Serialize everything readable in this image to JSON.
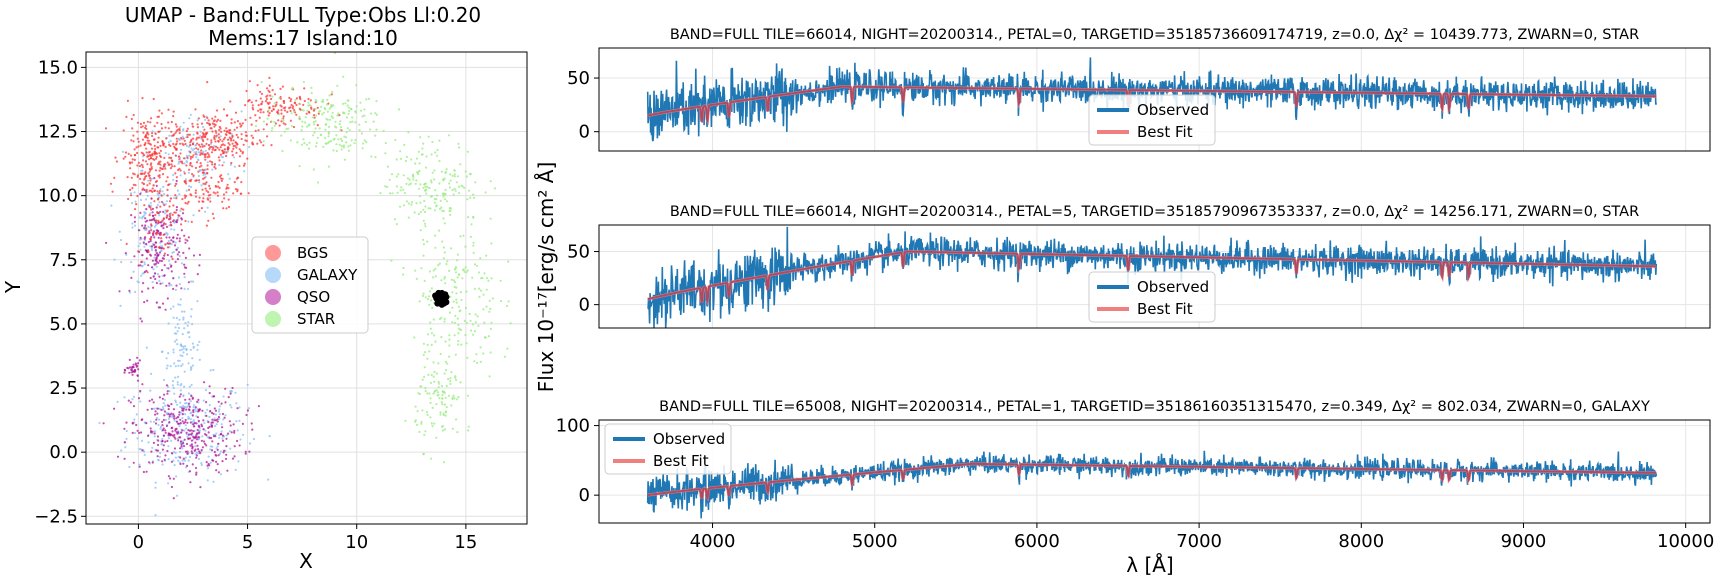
{
  "chart_data": [
    {
      "type": "scatter",
      "title": "UMAP  -  Band:FULL Type:Obs Ll:0.20",
      "subtitle": "Mems:17 Island:10",
      "xlabel": "X",
      "ylabel": "Y",
      "xlim": [
        -2.4,
        17.8
      ],
      "ylim": [
        -2.8,
        15.6
      ],
      "xticks": [
        0,
        5,
        10,
        15
      ],
      "xtick_labels": [
        "0",
        "5",
        "10",
        "15"
      ],
      "yticks": [
        -2.5,
        0.0,
        2.5,
        5.0,
        7.5,
        10.0,
        12.5,
        15.0
      ],
      "ytick_labels": [
        "−2.5",
        "0.0",
        "2.5",
        "5.0",
        "7.5",
        "10.0",
        "12.5",
        "15.0"
      ],
      "grid": true,
      "legend_position": "center",
      "series": [
        {
          "name": "BGS",
          "color": "#ff3333",
          "regions": [
            [
              0.5,
              11.5,
              1.2,
              1.6,
              0.35
            ],
            [
              3.5,
              12.2,
              1.8,
              1.0,
              0.35
            ],
            [
              6.5,
              13.5,
              1.8,
              0.8,
              0.2
            ],
            [
              1.0,
              9.0,
              1.0,
              1.2,
              0.1
            ],
            [
              3.0,
              10.5,
              1.5,
              1.2,
              0.2
            ]
          ]
        },
        {
          "name": "GALAXY",
          "color": "#87bff5",
          "regions": [
            [
              2.2,
              0.9,
              2.5,
              1.8,
              0.4
            ],
            [
              2.0,
              4.0,
              0.8,
              2.2,
              0.15
            ],
            [
              0.8,
              8.5,
              1.3,
              2.0,
              0.25
            ],
            [
              2.5,
              11.5,
              2.0,
              1.6,
              0.2
            ]
          ]
        },
        {
          "name": "QSO",
          "color": "#b0169a",
          "regions": [
            [
              2.2,
              0.8,
              2.3,
              1.5,
              0.5
            ],
            [
              1.0,
              8.0,
              1.2,
              1.8,
              0.3
            ],
            [
              -0.2,
              3.2,
              0.3,
              0.3,
              0.05
            ]
          ]
        },
        {
          "name": "STAR",
          "color": "#95ec7d",
          "regions": [
            [
              8.5,
              12.8,
              2.5,
              1.4,
              0.3
            ],
            [
              13.5,
              10.5,
              2.0,
              1.5,
              0.25
            ],
            [
              14.5,
              6.0,
              1.8,
              3.0,
              0.3
            ],
            [
              13.8,
              2.0,
              1.0,
              1.6,
              0.15
            ]
          ]
        }
      ],
      "island_points": [
        {
          "x": 13.6,
          "y": 6.1
        },
        {
          "x": 13.8,
          "y": 5.9
        },
        {
          "x": 14.0,
          "y": 6.0
        },
        {
          "x": 13.9,
          "y": 6.2
        },
        {
          "x": 13.7,
          "y": 5.8
        },
        {
          "x": 14.1,
          "y": 5.85
        },
        {
          "x": 13.85,
          "y": 6.05
        },
        {
          "x": 13.95,
          "y": 5.95
        },
        {
          "x": 13.65,
          "y": 6.0
        },
        {
          "x": 14.05,
          "y": 6.15
        },
        {
          "x": 13.75,
          "y": 6.2
        },
        {
          "x": 13.9,
          "y": 5.75
        },
        {
          "x": 14.0,
          "y": 5.8
        },
        {
          "x": 13.8,
          "y": 6.1
        },
        {
          "x": 13.7,
          "y": 5.95
        },
        {
          "x": 14.1,
          "y": 6.05
        },
        {
          "x": 13.85,
          "y": 5.85
        }
      ],
      "island_color": "#000000"
    },
    {
      "type": "line",
      "title": "BAND=FULL TILE=66014, NIGHT=20200314., PETAL=0, TARGETID=35185736609174719, z=0.0, Δχ² = 10439.773, ZWARN=0, STAR",
      "xlim": [
        3300,
        10150
      ],
      "ylim": [
        -18,
        78
      ],
      "yticks": [
        0,
        50
      ],
      "ytick_labels": [
        "0",
        "50"
      ],
      "grid": true,
      "legend_position": "lower-center",
      "series": [
        {
          "name": "Observed",
          "color": "#1f77b4"
        },
        {
          "name": "Best Fit",
          "color": "#f08080"
        }
      ],
      "profile": {
        "start": 15,
        "rise_end": 4800,
        "plateau": 42,
        "end": 33
      },
      "x_range": [
        3600,
        9820
      ]
    },
    {
      "type": "line",
      "title": "BAND=FULL TILE=66014, NIGHT=20200314., PETAL=5, TARGETID=35185790967353337, z=0.0, Δχ² = 14256.171, ZWARN=0, STAR",
      "xlim": [
        3300,
        10150
      ],
      "ylim": [
        -22,
        75
      ],
      "yticks": [
        0,
        50
      ],
      "ytick_labels": [
        "0",
        "50"
      ],
      "grid": true,
      "legend_position": "lower-center",
      "series": [
        {
          "name": "Observed",
          "color": "#1f77b4"
        },
        {
          "name": "Best Fit",
          "color": "#f08080"
        }
      ],
      "profile": {
        "start": 5,
        "rise_end": 5200,
        "plateau": 50,
        "end": 36
      },
      "x_range": [
        3600,
        9820
      ]
    },
    {
      "type": "line",
      "title": "BAND=FULL TILE=65008, NIGHT=20200314., PETAL=1, TARGETID=35186160351315470, z=0.349, Δχ² = 802.034, ZWARN=0, GALAXY",
      "xlabel": "λ [Å]",
      "xlim": [
        3300,
        10150
      ],
      "ylim": [
        -40,
        108
      ],
      "xticks": [
        4000,
        5000,
        6000,
        7000,
        8000,
        9000,
        10000
      ],
      "xtick_labels": [
        "4000",
        "5000",
        "6000",
        "7000",
        "8000",
        "9000",
        "10000"
      ],
      "yticks": [
        0,
        100
      ],
      "ytick_labels": [
        "0",
        "100"
      ],
      "grid": true,
      "legend_position": "upper-left",
      "series": [
        {
          "name": "Observed",
          "color": "#1f77b4"
        },
        {
          "name": "Best Fit",
          "color": "#f08080"
        }
      ],
      "profile": {
        "start": 0,
        "rise_end": 5600,
        "plateau": 45,
        "end": 32
      },
      "x_range": [
        3600,
        9820
      ]
    }
  ],
  "shared_ylabel": "Flux 10⁻¹⁷[erg/s cm² Å]"
}
